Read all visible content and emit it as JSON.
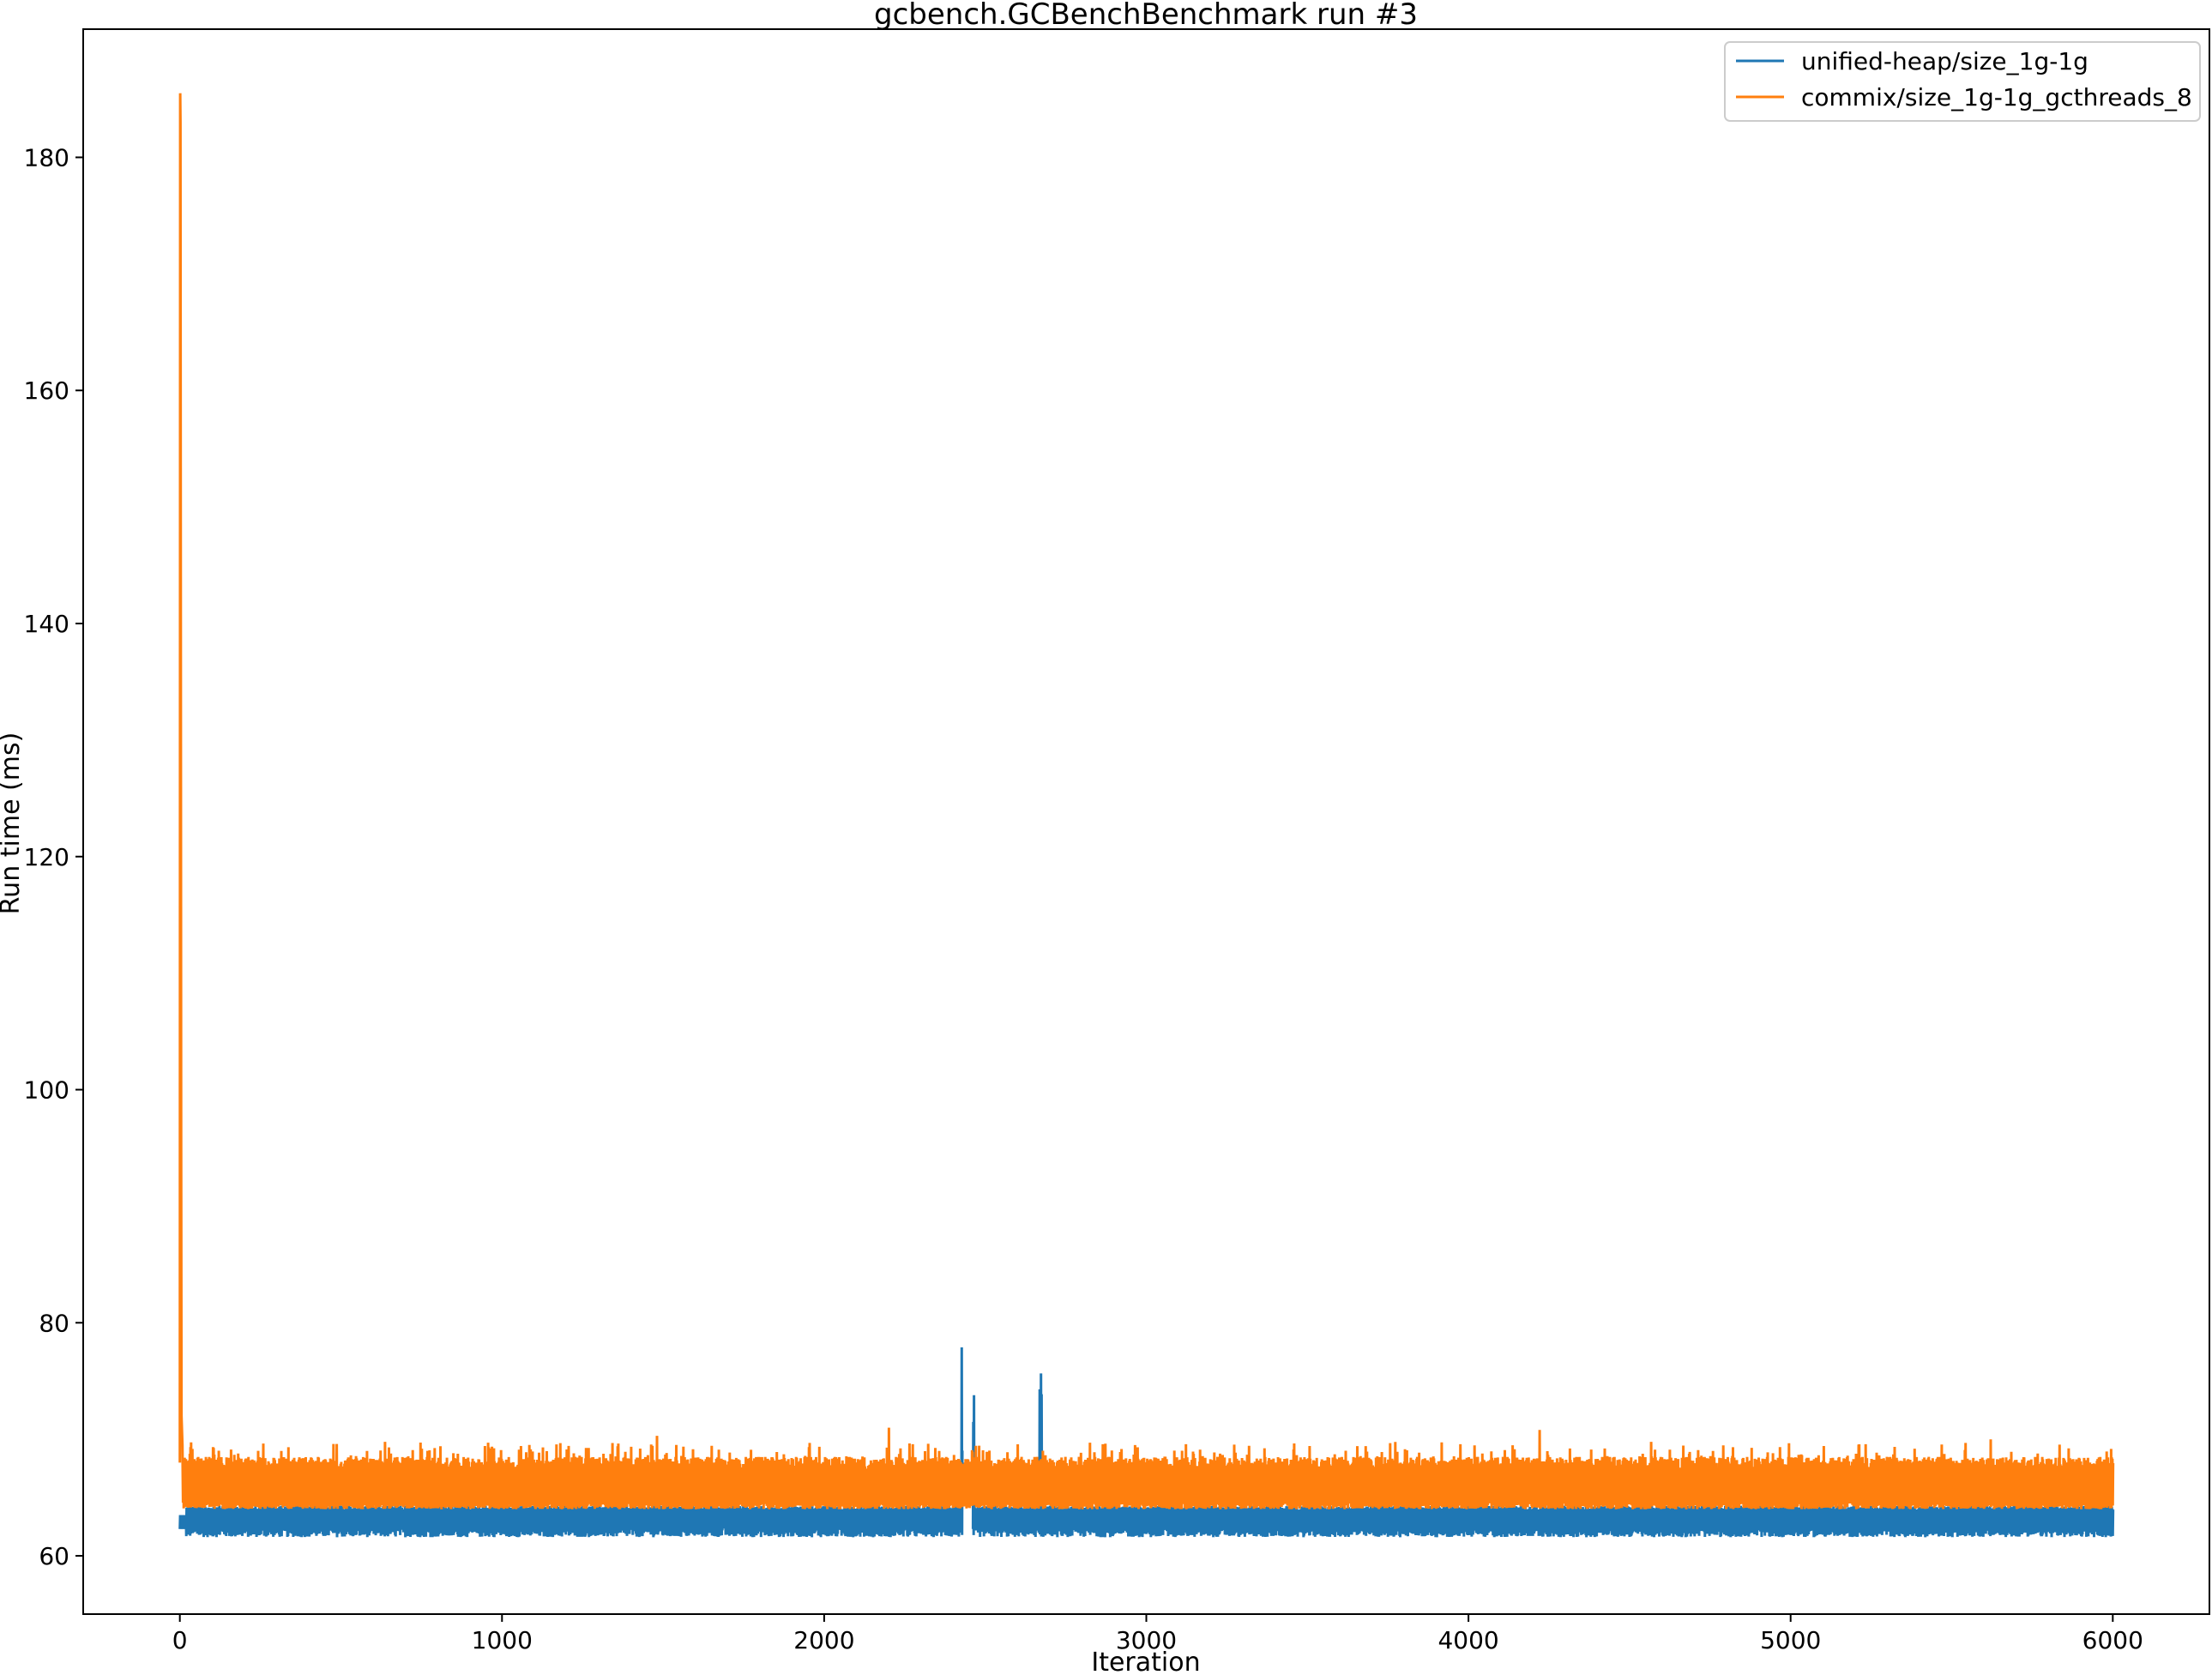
{
  "chart_data": {
    "type": "line",
    "title": "gcbench.GCBenchBenchmark run #3",
    "xlabel": "Iteration",
    "ylabel": "Run time (ms)",
    "xlim": [
      -300,
      6300
    ],
    "ylim": [
      55,
      191
    ],
    "xticks": [
      0,
      1000,
      2000,
      3000,
      4000,
      5000,
      6000
    ],
    "yticks": [
      60,
      80,
      100,
      120,
      140,
      160,
      180
    ],
    "grid": false,
    "legend_position": "top-right",
    "series": [
      {
        "name": "unified-heap/size_1g-1g",
        "color": "#1f77b4",
        "description_points": [
          [
            0,
            63.5
          ],
          [
            5,
            62.8
          ],
          [
            10,
            62.6
          ],
          [
            20,
            62.3
          ]
        ],
        "band": {
          "x_range": [
            0,
            6000
          ],
          "low": 61.6,
          "high": 64.3,
          "gaps": [
            [
              2430,
              2460
            ]
          ],
          "spikes": [
            {
              "x_range": [
                2425,
                2465
              ],
              "low": 69.0,
              "high": 78.3
            },
            {
              "x_range": [
                2663,
                2677
              ],
              "low": 64.0,
              "high": 76.5
            }
          ]
        }
      },
      {
        "name": "commix/size_1g-1g_gcthreads_8",
        "color": "#ff7f0e",
        "description_points": [
          [
            0,
            68
          ],
          [
            1,
            185.5
          ],
          [
            2,
            183
          ],
          [
            3,
            140
          ],
          [
            4,
            95
          ],
          [
            5,
            72
          ],
          [
            8,
            69.5
          ]
        ],
        "band": {
          "x_range": [
            0,
            6000
          ],
          "low": 64.0,
          "high": 68.5,
          "peaks": [
            [
              2200,
              71.0
            ],
            [
              4220,
              70.8
            ],
            [
              1480,
              70.3
            ],
            [
              5620,
              70.0
            ]
          ]
        }
      }
    ]
  }
}
